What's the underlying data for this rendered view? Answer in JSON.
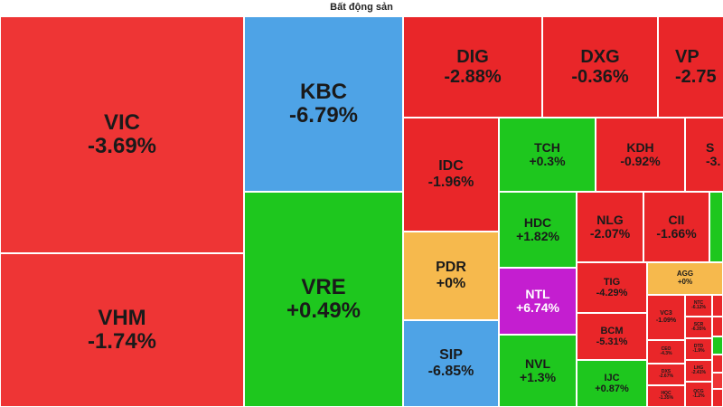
{
  "title": "Bất động sản",
  "tiles": {
    "vic": {
      "ticker": "VIC",
      "change": "-3.69%"
    },
    "vhm": {
      "ticker": "VHM",
      "change": "-1.74%"
    },
    "kbc": {
      "ticker": "KBC",
      "change": "-6.79%"
    },
    "vre": {
      "ticker": "VRE",
      "change": "+0.49%"
    },
    "dig": {
      "ticker": "DIG",
      "change": "-2.88%"
    },
    "dxg": {
      "ticker": "DXG",
      "change": "-0.36%"
    },
    "vpi": {
      "ticker": "VP",
      "change": "-2.75"
    },
    "idc": {
      "ticker": "IDC",
      "change": "-1.96%"
    },
    "tch": {
      "ticker": "TCH",
      "change": "+0.3%"
    },
    "kdh": {
      "ticker": "KDH",
      "change": "-0.92%"
    },
    "scr": {
      "ticker": "S",
      "change": "-3."
    },
    "pdr": {
      "ticker": "PDR",
      "change": "+0%"
    },
    "hdc": {
      "ticker": "HDC",
      "change": "+1.82%"
    },
    "nlg": {
      "ticker": "NLG",
      "change": "-2.07%"
    },
    "cii": {
      "ticker": "CII",
      "change": "-1.66%"
    },
    "sip": {
      "ticker": "SIP",
      "change": "-6.85%"
    },
    "ntl": {
      "ticker": "NTL",
      "change": "+6.74%"
    },
    "nvl": {
      "ticker": "NVL",
      "change": "+1.3%"
    },
    "tig": {
      "ticker": "TIG",
      "change": "-4.29%"
    },
    "agg": {
      "ticker": "AGG",
      "change": "+0%"
    },
    "bcm": {
      "ticker": "BCM",
      "change": "-5.31%"
    },
    "ijc": {
      "ticker": "IJC",
      "change": "+0.87%"
    },
    "vc3": {
      "ticker": "VC3",
      "change": "-1.09%"
    },
    "ntc": {
      "ticker": "NTC",
      "change": "-6.12%"
    },
    "scr2": {
      "ticker": "SCR",
      "change": "-6.35%"
    },
    "ceo": {
      "ticker": "CEO",
      "change": "-4.3%"
    },
    "dtd": {
      "ticker": "DTD",
      "change": "-1.9%"
    },
    "dxs": {
      "ticker": "DXS",
      "change": "-2.67%"
    },
    "lhg": {
      "ticker": "LHG",
      "change": "-2.41%"
    },
    "hqc": {
      "ticker": "HQC",
      "change": "-1.35%"
    },
    "qcg": {
      "ticker": "QCG",
      "change": "-1.2%"
    }
  },
  "colors": {
    "down": "#e92629",
    "up": "#1ec71e",
    "floor": "#4ea3e6",
    "ceiling": "#c41ed0",
    "unchanged": "#f6b94d"
  }
}
